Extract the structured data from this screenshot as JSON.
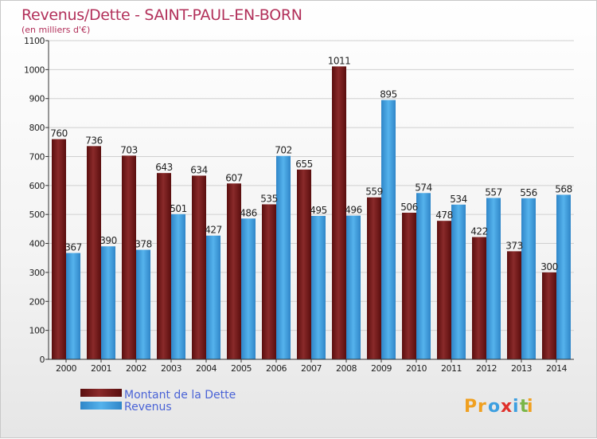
{
  "chart_data": {
    "type": "bar",
    "title": "Revenus/Dette - SAINT-PAUL-EN-BORN",
    "subtitle": "(en milliers d'€)",
    "categories": [
      "2000",
      "2001",
      "2002",
      "2003",
      "2004",
      "2005",
      "2006",
      "2007",
      "2008",
      "2009",
      "2010",
      "2011",
      "2012",
      "2013",
      "2014"
    ],
    "series": [
      {
        "name": "Montant de la Dette",
        "color": "#7a1c1c",
        "values": [
          760,
          736,
          703,
          643,
          634,
          607,
          535,
          655,
          1011,
          559,
          506,
          478,
          422,
          373,
          300
        ]
      },
      {
        "name": "Revenus",
        "color": "#3d9fe0",
        "values": [
          367,
          390,
          378,
          501,
          427,
          486,
          702,
          495,
          496,
          895,
          574,
          534,
          557,
          556,
          568
        ]
      }
    ],
    "yticks": [
      0,
      100,
      200,
      300,
      400,
      500,
      600,
      700,
      800,
      900,
      1000,
      1100
    ],
    "ylim": [
      0,
      1100
    ],
    "grid": true,
    "legend_position": "bottom-left"
  },
  "branding": {
    "logo_letters": [
      "P",
      "r",
      "o",
      "x",
      "i",
      "t",
      "i"
    ],
    "logo_colors": [
      "#f0a020",
      "#f0a020",
      "#3d9fe0",
      "#e0302a",
      "#3d9fe0",
      "#7ab648",
      "#f0a020"
    ]
  }
}
